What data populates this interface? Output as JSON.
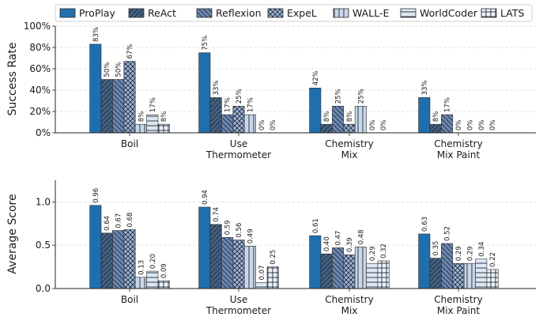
{
  "chart_data": [
    {
      "type": "bar",
      "ylabel": "Success Rate",
      "ylim": [
        0,
        100
      ],
      "yticks": [
        "0%",
        "20%",
        "40%",
        "60%",
        "80%",
        "100%"
      ],
      "ytick_values": [
        0,
        20,
        40,
        60,
        80,
        100
      ],
      "grid": "horizontal dashed",
      "categories": [
        [
          "Boil"
        ],
        [
          "Use",
          "Thermometer"
        ],
        [
          "Chemistry",
          "Mix"
        ],
        [
          "Chemistry",
          "Mix Paint"
        ]
      ],
      "series": [
        {
          "name": "ProPlay",
          "values": [
            83,
            75,
            42,
            33
          ],
          "labels": [
            "83%",
            "75%",
            "42%",
            "33%"
          ]
        },
        {
          "name": "ReAct",
          "values": [
            50,
            33,
            8,
            8
          ],
          "labels": [
            "50%",
            "33%",
            "8%",
            "8%"
          ]
        },
        {
          "name": "Reflexion",
          "values": [
            50,
            17,
            25,
            17
          ],
          "labels": [
            "50%",
            "17%",
            "25%",
            "17%"
          ]
        },
        {
          "name": "ExpeL",
          "values": [
            67,
            25,
            8,
            0
          ],
          "labels": [
            "67%",
            "25%",
            "8%",
            "0%"
          ]
        },
        {
          "name": "WALL-E",
          "values": [
            8,
            17,
            25,
            0
          ],
          "labels": [
            "8%",
            "17%",
            "25%",
            "0%"
          ]
        },
        {
          "name": "WorldCoder",
          "values": [
            17,
            0,
            0,
            0
          ],
          "labels": [
            "17%",
            "0%",
            "0%",
            "0%"
          ]
        },
        {
          "name": "LATS",
          "values": [
            8,
            0,
            0,
            0
          ],
          "labels": [
            "8%",
            "0%",
            "0%",
            "0%"
          ]
        }
      ]
    },
    {
      "type": "bar",
      "ylabel": "Average Score",
      "ylim": [
        0,
        1.25
      ],
      "yticks": [
        "0.0",
        "0.5",
        "1.0"
      ],
      "ytick_values": [
        0,
        0.5,
        1.0
      ],
      "grid": "horizontal dashed",
      "categories": [
        [
          "Boil"
        ],
        [
          "Use",
          "Thermometer"
        ],
        [
          "Chemistry",
          "Mix"
        ],
        [
          "Chemistry",
          "Mix Paint"
        ]
      ],
      "series": [
        {
          "name": "ProPlay",
          "values": [
            0.96,
            0.94,
            0.61,
            0.63
          ],
          "labels": [
            "0.96",
            "0.94",
            "0.61",
            "0.63"
          ]
        },
        {
          "name": "ReAct",
          "values": [
            0.64,
            0.74,
            0.4,
            0.35
          ],
          "labels": [
            "0.64",
            "0.74",
            "0.40",
            "0.35"
          ]
        },
        {
          "name": "Reflexion",
          "values": [
            0.67,
            0.59,
            0.47,
            0.52
          ],
          "labels": [
            "0.67",
            "0.59",
            "0.47",
            "0.52"
          ]
        },
        {
          "name": "ExpeL",
          "values": [
            0.68,
            0.56,
            0.39,
            0.29
          ],
          "labels": [
            "0.68",
            "0.56",
            "0.39",
            "0.29"
          ]
        },
        {
          "name": "WALL-E",
          "values": [
            0.13,
            0.49,
            0.48,
            0.29
          ],
          "labels": [
            "0.13",
            "0.49",
            "0.48",
            "0.29"
          ]
        },
        {
          "name": "WorldCoder",
          "values": [
            0.2,
            0.07,
            0.29,
            0.34
          ],
          "labels": [
            "0.20",
            "0.07",
            "0.29",
            "0.34"
          ]
        },
        {
          "name": "LATS",
          "values": [
            0.09,
            0.25,
            0.32,
            0.22
          ],
          "labels": [
            "0.09",
            "0.25",
            "0.32",
            "0.22"
          ]
        }
      ]
    }
  ],
  "legend": {
    "placement": "top",
    "entries": [
      "ProPlay",
      "ReAct",
      "Reflexion",
      "ExpeL",
      "WALL-E",
      "WorldCoder",
      "LATS"
    ]
  },
  "series_styles": [
    {
      "name": "ProPlay",
      "fill": "#1f6fae",
      "pattern": "solid"
    },
    {
      "name": "ReAct",
      "fill": "#45607f",
      "pattern": "diagonal-lines"
    },
    {
      "name": "Reflexion",
      "fill": "#6c87b0",
      "pattern": "back-diagonal-lines"
    },
    {
      "name": "ExpeL",
      "fill": "#9fb6d6",
      "pattern": "crosshatch"
    },
    {
      "name": "WALL-E",
      "fill": "#c9d7e8",
      "pattern": "vertical-lines"
    },
    {
      "name": "WorldCoder",
      "fill": "#dde7f2",
      "pattern": "horizontal-lines"
    },
    {
      "name": "LATS",
      "fill": "#edf2f8",
      "pattern": "grid"
    }
  ]
}
